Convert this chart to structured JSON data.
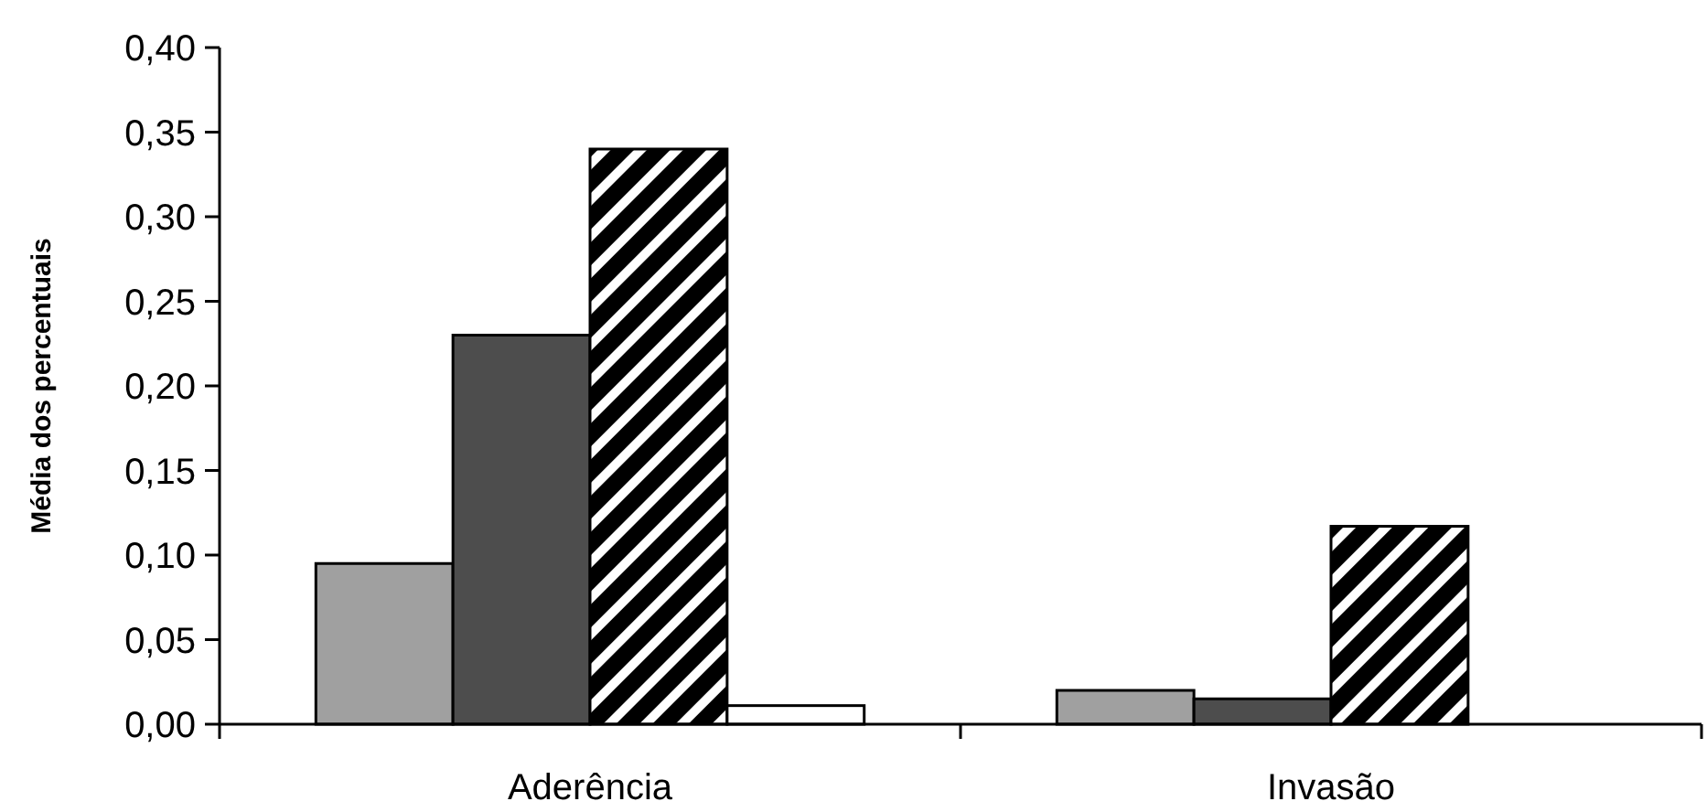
{
  "chart_data": {
    "type": "bar",
    "ylabel": "Média dos percentuais",
    "categories": [
      "Aderência",
      "Invasão"
    ],
    "series": [
      {
        "color": "#a0a0a0",
        "values": [
          0.095,
          0.02
        ]
      },
      {
        "color": "#4d4d4d",
        "values": [
          0.23,
          0.015
        ]
      },
      {
        "color": "#000000",
        "values": [
          0.34,
          0.117
        ]
      },
      {
        "color": "#ffffff",
        "values": [
          0.011,
          null
        ]
      }
    ],
    "ylim": [
      0,
      0.4
    ],
    "yticks": [
      {
        "value": 0,
        "label": "0,00"
      },
      {
        "value": 0.05,
        "label": "0,05"
      },
      {
        "value": 0.1,
        "label": "0,10"
      },
      {
        "value": 0.15,
        "label": "0,15"
      },
      {
        "value": 0.2,
        "label": "0,20"
      },
      {
        "value": 0.25,
        "label": "0,25"
      },
      {
        "value": 0.3,
        "label": "0,30"
      },
      {
        "value": 0.35,
        "label": "0,35"
      },
      {
        "value": 0.4,
        "label": "0,40"
      }
    ],
    "grid": false
  }
}
